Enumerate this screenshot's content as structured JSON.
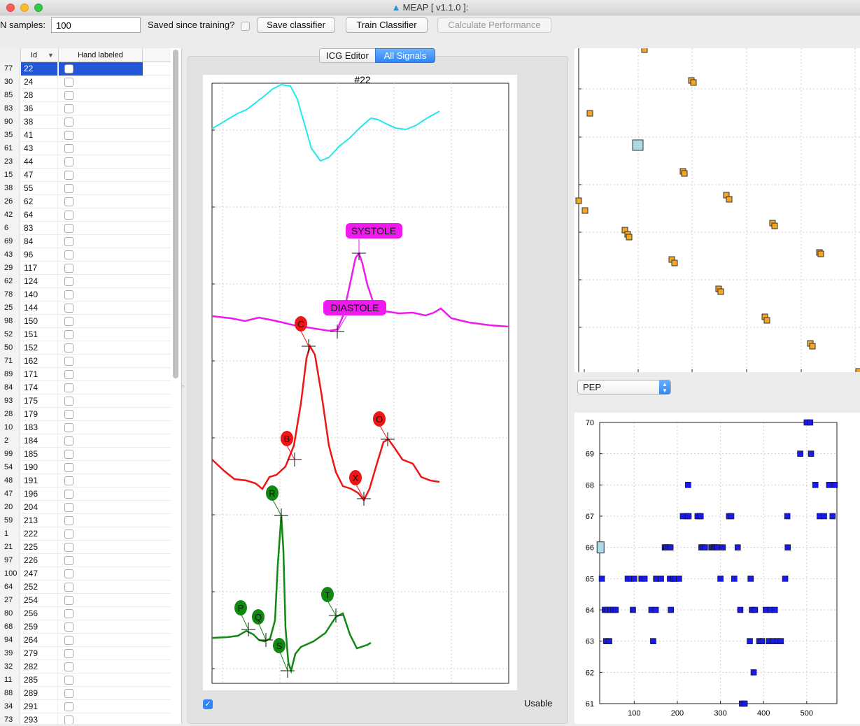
{
  "window": {
    "title": "MEAP [ v1.1.0 ]:"
  },
  "toolbar": {
    "n_samples_label": "N samples:",
    "n_samples_value": "100",
    "saved_label": "Saved since training?",
    "save_button": "Save classifier",
    "train_button": "Train Classifier",
    "calc_button": "Calculate Performance"
  },
  "table": {
    "headers": {
      "id": "Id",
      "hand_labeled": "Hand labeled"
    },
    "rows": [
      {
        "n": "77",
        "id": "22"
      },
      {
        "n": "30",
        "id": "24"
      },
      {
        "n": "85",
        "id": "28"
      },
      {
        "n": "83",
        "id": "36"
      },
      {
        "n": "90",
        "id": "38"
      },
      {
        "n": "35",
        "id": "41"
      },
      {
        "n": "61",
        "id": "43"
      },
      {
        "n": "23",
        "id": "44"
      },
      {
        "n": "15",
        "id": "47"
      },
      {
        "n": "38",
        "id": "55"
      },
      {
        "n": "26",
        "id": "62"
      },
      {
        "n": "42",
        "id": "64"
      },
      {
        "n": "6",
        "id": "83"
      },
      {
        "n": "69",
        "id": "84"
      },
      {
        "n": "43",
        "id": "96"
      },
      {
        "n": "29",
        "id": "117"
      },
      {
        "n": "62",
        "id": "124"
      },
      {
        "n": "78",
        "id": "140"
      },
      {
        "n": "25",
        "id": "144"
      },
      {
        "n": "98",
        "id": "150"
      },
      {
        "n": "52",
        "id": "151"
      },
      {
        "n": "50",
        "id": "152"
      },
      {
        "n": "71",
        "id": "162"
      },
      {
        "n": "89",
        "id": "171"
      },
      {
        "n": "84",
        "id": "174"
      },
      {
        "n": "93",
        "id": "175"
      },
      {
        "n": "28",
        "id": "179"
      },
      {
        "n": "10",
        "id": "183"
      },
      {
        "n": "2",
        "id": "184"
      },
      {
        "n": "99",
        "id": "185"
      },
      {
        "n": "54",
        "id": "190"
      },
      {
        "n": "48",
        "id": "191"
      },
      {
        "n": "47",
        "id": "196"
      },
      {
        "n": "20",
        "id": "204"
      },
      {
        "n": "59",
        "id": "213"
      },
      {
        "n": "1",
        "id": "222"
      },
      {
        "n": "21",
        "id": "225"
      },
      {
        "n": "97",
        "id": "226"
      },
      {
        "n": "100",
        "id": "247"
      },
      {
        "n": "64",
        "id": "252"
      },
      {
        "n": "27",
        "id": "254"
      },
      {
        "n": "80",
        "id": "256"
      },
      {
        "n": "68",
        "id": "259"
      },
      {
        "n": "94",
        "id": "264"
      },
      {
        "n": "39",
        "id": "279"
      },
      {
        "n": "32",
        "id": "282"
      },
      {
        "n": "11",
        "id": "285"
      },
      {
        "n": "88",
        "id": "289"
      },
      {
        "n": "34",
        "id": "291"
      },
      {
        "n": "73",
        "id": "293"
      }
    ]
  },
  "tabs": {
    "icg_editor": "ICG Editor",
    "all_signals": "All Signals"
  },
  "signal_plot": {
    "title": "#22",
    "labels": {
      "systole": "SYSTOLE",
      "diastole": "DIASTOLE",
      "c": "C",
      "b": "B",
      "x": "X",
      "o": "O",
      "r": "R",
      "p": "P",
      "q": "Q",
      "s": "S",
      "t": "T"
    },
    "colors": {
      "cyan": "#20e8ee",
      "magenta": "#ee1aee",
      "red": "#ee1515",
      "green": "#118811"
    }
  },
  "usable_label": "Usable",
  "pep_select": {
    "value": "PEP"
  },
  "chart_data": {
    "type": "scatter",
    "title": "",
    "xlabel": "",
    "ylabel": "",
    "xlim": [
      20,
      570
    ],
    "ylim": [
      61,
      70
    ],
    "x_ticks": [
      "100",
      "200",
      "300",
      "400",
      "500"
    ],
    "y_ticks": [
      "61",
      "62",
      "63",
      "64",
      "65",
      "66",
      "67",
      "68",
      "69",
      "70"
    ],
    "highlight": {
      "x": 22,
      "y": 66,
      "color": "#add8e6"
    },
    "point_color": "#1a1ae6",
    "points": [
      [
        25,
        65
      ],
      [
        32,
        64
      ],
      [
        38,
        64
      ],
      [
        45,
        64
      ],
      [
        52,
        64
      ],
      [
        57,
        64
      ],
      [
        35,
        63
      ],
      [
        42,
        63
      ],
      [
        85,
        65
      ],
      [
        92,
        65
      ],
      [
        97,
        64
      ],
      [
        100,
        65
      ],
      [
        117,
        65
      ],
      [
        124,
        65
      ],
      [
        140,
        64
      ],
      [
        144,
        63
      ],
      [
        150,
        64
      ],
      [
        151,
        65
      ],
      [
        152,
        65
      ],
      [
        162,
        65
      ],
      [
        171,
        66
      ],
      [
        174,
        66
      ],
      [
        175,
        66
      ],
      [
        179,
        66
      ],
      [
        183,
        65
      ],
      [
        184,
        66
      ],
      [
        185,
        64
      ],
      [
        190,
        65
      ],
      [
        191,
        65
      ],
      [
        196,
        65
      ],
      [
        204,
        65
      ],
      [
        213,
        67
      ],
      [
        222,
        67
      ],
      [
        225,
        68
      ],
      [
        226,
        67
      ],
      [
        247,
        67
      ],
      [
        252,
        67
      ],
      [
        254,
        67
      ],
      [
        256,
        66
      ],
      [
        259,
        66
      ],
      [
        264,
        66
      ],
      [
        279,
        66
      ],
      [
        282,
        66
      ],
      [
        285,
        66
      ],
      [
        289,
        66
      ],
      [
        291,
        66
      ],
      [
        293,
        66
      ],
      [
        300,
        65
      ],
      [
        305,
        66
      ],
      [
        320,
        67
      ],
      [
        325,
        67
      ],
      [
        332,
        65
      ],
      [
        340,
        66
      ],
      [
        346,
        64
      ],
      [
        350,
        61
      ],
      [
        356,
        61
      ],
      [
        368,
        63
      ],
      [
        373,
        64
      ],
      [
        377,
        62
      ],
      [
        370,
        65
      ],
      [
        380,
        64
      ],
      [
        390,
        63
      ],
      [
        396,
        63
      ],
      [
        405,
        64
      ],
      [
        412,
        63
      ],
      [
        416,
        64
      ],
      [
        422,
        63
      ],
      [
        426,
        64
      ],
      [
        432,
        63
      ],
      [
        440,
        63
      ],
      [
        450,
        65
      ],
      [
        455,
        67
      ],
      [
        456,
        66
      ],
      [
        485,
        69
      ],
      [
        500,
        70
      ],
      [
        508,
        70
      ],
      [
        510,
        69
      ],
      [
        520,
        68
      ],
      [
        530,
        67
      ],
      [
        540,
        67
      ],
      [
        552,
        68
      ],
      [
        560,
        67
      ],
      [
        565,
        68
      ]
    ]
  }
}
